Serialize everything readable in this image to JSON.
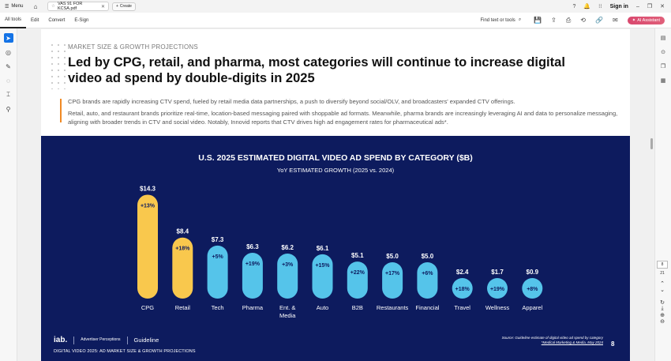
{
  "app": {
    "menu_label": "Menu",
    "tab_title": "VAS 91 FOR KCSA.pdf",
    "create_label": "Create",
    "sign_in": "Sign in",
    "toolbar_items": [
      "All tools",
      "Edit",
      "Convert",
      "E-Sign"
    ],
    "find_label": "Find text or tools",
    "ai_label": "AI Assistant",
    "page_current": "8",
    "page_total": "21",
    "accent_color": "#1473e6"
  },
  "document": {
    "kicker": "MARKET SIZE & GROWTH PROJECTIONS",
    "headline": "Led by CPG, retail, and pharma, most categories will continue to increase digital video ad spend by double-digits in 2025",
    "paragraph1": "CPG brands are rapidly increasing CTV spend, fueled by retail media data partnerships, a push to diversify beyond social/OLV, and broadcasters' expanded CTV offerings.",
    "paragraph2": "Retail, auto, and restaurant brands prioritize real-time, location-based messaging paired with shoppable ad formats. Meanwhile, pharma brands are increasingly leveraging AI and data to personalize messaging, aligning with broader trends in CTV and social video. Notably, Innovid reports that CTV drives high ad engagement rates for pharmaceutical ads*.",
    "footer_logo_iab": "iab.",
    "footer_logo_ap": "Advertiser Perceptions",
    "footer_logo_gl": "Guideline",
    "footer_caption": "DIGITAL VIDEO 2025: AD MARKET SIZE & GROWTH PROJECTIONS",
    "footer_source1": "Source: Guideline estimate of digital video ad spend by category",
    "footer_source2": "*Medical Marketing & Media, May 2024",
    "page_number": "8"
  },
  "chart_data": {
    "type": "bar",
    "title": "U.S. 2025 ESTIMATED DIGITAL VIDEO AD SPEND BY CATEGORY ($B)",
    "subtitle": "YoY ESTIMATED GROWTH (2025 vs. 2024)",
    "categories": [
      "CPG",
      "Retail",
      "Tech",
      "Pharma",
      "Ent. & Media",
      "Auto",
      "B2B",
      "Restaurants",
      "Financial",
      "Travel",
      "Wellness",
      "Apparel"
    ],
    "values": [
      14.3,
      8.4,
      7.3,
      6.3,
      6.2,
      6.1,
      5.1,
      5.0,
      5.0,
      2.4,
      1.7,
      0.9
    ],
    "value_labels": [
      "$14.3",
      "$8.4",
      "$7.3",
      "$6.3",
      "$6.2",
      "$6.1",
      "$5.1",
      "$5.0",
      "$5.0",
      "$2.4",
      "$1.7",
      "$0.9"
    ],
    "growth_labels": [
      "+13%",
      "+18%",
      "+5%",
      "+19%",
      "+3%",
      "+15%",
      "+22%",
      "+17%",
      "+6%",
      "+18%",
      "+19%",
      "+8%"
    ],
    "highlight_count": 2,
    "colors": {
      "highlight": "#f9c84d",
      "default": "#55c4ea",
      "background": "#0d1b5e",
      "text": "#ffffff"
    },
    "ylim": [
      0,
      15
    ]
  }
}
